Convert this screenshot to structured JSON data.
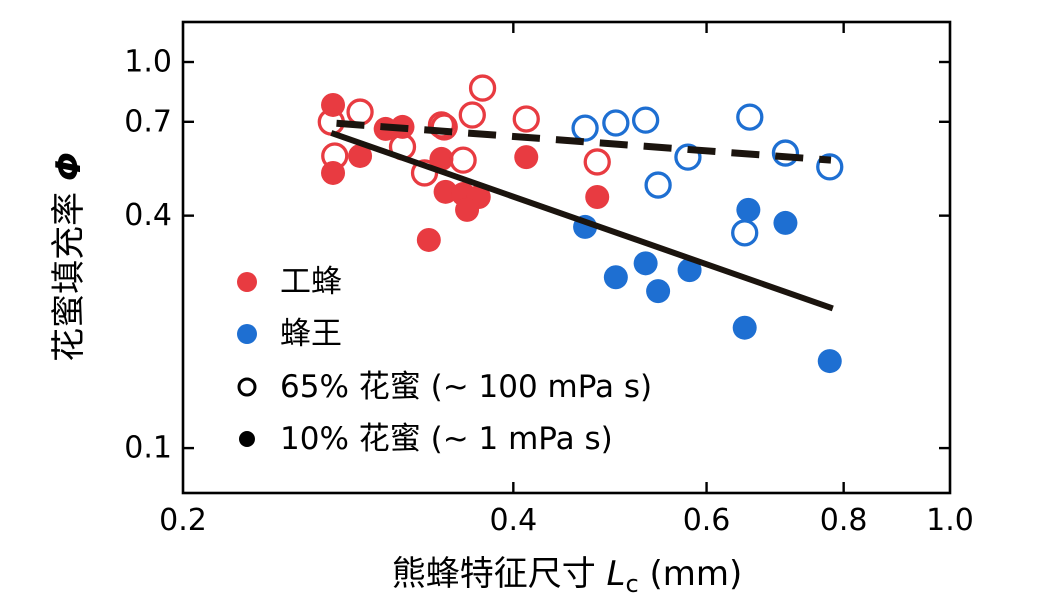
{
  "figure": {
    "background": "#ffffff",
    "axis_color": "#000000",
    "line_color": "#1b140e"
  },
  "chart_data": {
    "type": "scatter",
    "title": "",
    "x_axis": {
      "label_cjk": "熊蜂特征尺寸",
      "label_var": "L",
      "label_sub": "c",
      "label_unit": " (mm)",
      "scale": "log",
      "range": [
        0.2,
        1.0
      ],
      "ticks": [
        0.2,
        0.4,
        0.6,
        0.8,
        1.0
      ],
      "tick_labels": [
        "0.2",
        "0.4",
        "0.6",
        "0.8",
        "1.0"
      ]
    },
    "y_axis": {
      "label_cjk": "花蜜填充率 ",
      "label_var": "Φ",
      "scale": "log",
      "range": [
        0.0765,
        1.2695
      ],
      "ticks": [
        0.1,
        0.4,
        0.7,
        1.0
      ],
      "tick_labels": [
        "0.1",
        "0.4",
        "0.7",
        "1.0"
      ]
    },
    "grid": false,
    "legend_position": "lower-left-inside",
    "series": [
      {
        "name": "工蜂 10% 花蜜",
        "group": "worker",
        "nectar": "10%",
        "marker": "filled",
        "color": "#e83b41",
        "points": [
          [
            0.274,
            0.774
          ],
          [
            0.306,
            0.671
          ],
          [
            0.317,
            0.679
          ],
          [
            0.29,
            0.571
          ],
          [
            0.274,
            0.516
          ],
          [
            0.344,
            0.561
          ],
          [
            0.347,
            0.461
          ],
          [
            0.36,
            0.455
          ],
          [
            0.372,
            0.447
          ],
          [
            0.363,
            0.414
          ],
          [
            0.335,
            0.346
          ],
          [
            0.411,
            0.567
          ],
          [
            0.477,
            0.447
          ]
        ]
      },
      {
        "name": "工蜂 65% 花蜜",
        "group": "worker",
        "nectar": "65%",
        "marker": "open",
        "color": "#e83b41",
        "points": [
          [
            0.273,
            0.699
          ],
          [
            0.29,
            0.742
          ],
          [
            0.317,
            0.603
          ],
          [
            0.275,
            0.571
          ],
          [
            0.344,
            0.687
          ],
          [
            0.367,
            0.729
          ],
          [
            0.375,
            0.856
          ],
          [
            0.346,
            0.679
          ],
          [
            0.36,
            0.557
          ],
          [
            0.332,
            0.516
          ],
          [
            0.411,
            0.712
          ],
          [
            0.477,
            0.551
          ]
        ]
      },
      {
        "name": "蜂王 65% 花蜜",
        "group": "queen",
        "nectar": "65%",
        "marker": "open",
        "color": "#1e6fd2",
        "points": [
          [
            0.465,
            0.674
          ],
          [
            0.496,
            0.695
          ],
          [
            0.528,
            0.707
          ],
          [
            0.657,
            0.72
          ],
          [
            0.577,
            0.567
          ],
          [
            0.708,
            0.581
          ],
          [
            0.777,
            0.535
          ],
          [
            0.542,
            0.48
          ],
          [
            0.65,
            0.361
          ]
        ]
      },
      {
        "name": "蜂王 10% 花蜜",
        "group": "queen",
        "nectar": "10%",
        "marker": "filled",
        "color": "#1e6fd2",
        "points": [
          [
            0.465,
            0.374
          ],
          [
            0.496,
            0.277
          ],
          [
            0.528,
            0.301
          ],
          [
            0.542,
            0.255
          ],
          [
            0.579,
            0.289
          ],
          [
            0.655,
            0.414
          ],
          [
            0.708,
            0.383
          ],
          [
            0.65,
            0.205
          ],
          [
            0.777,
            0.168
          ]
        ]
      }
    ],
    "fit_lines": [
      {
        "name": "65%-nectar-fit",
        "style": "dashed",
        "from": [
          0.276,
          0.694
        ],
        "to": [
          0.779,
          0.557
        ]
      },
      {
        "name": "10%-nectar-fit",
        "style": "solid",
        "from": [
          0.273,
          0.655
        ],
        "to": [
          0.782,
          0.23
        ]
      }
    ],
    "legend": [
      {
        "label": "工蜂",
        "marker": "filled",
        "color": "#e83b41",
        "size": "large"
      },
      {
        "label": "蜂王",
        "marker": "filled",
        "color": "#1e6fd2",
        "size": "large"
      },
      {
        "label": "65% 花蜜 (~ 100 mPa s)",
        "marker": "open",
        "color": "#000000",
        "size": "small"
      },
      {
        "label": "10% 花蜜 (~ 1 mPa s)",
        "marker": "filled",
        "color": "#000000",
        "size": "small"
      }
    ]
  }
}
